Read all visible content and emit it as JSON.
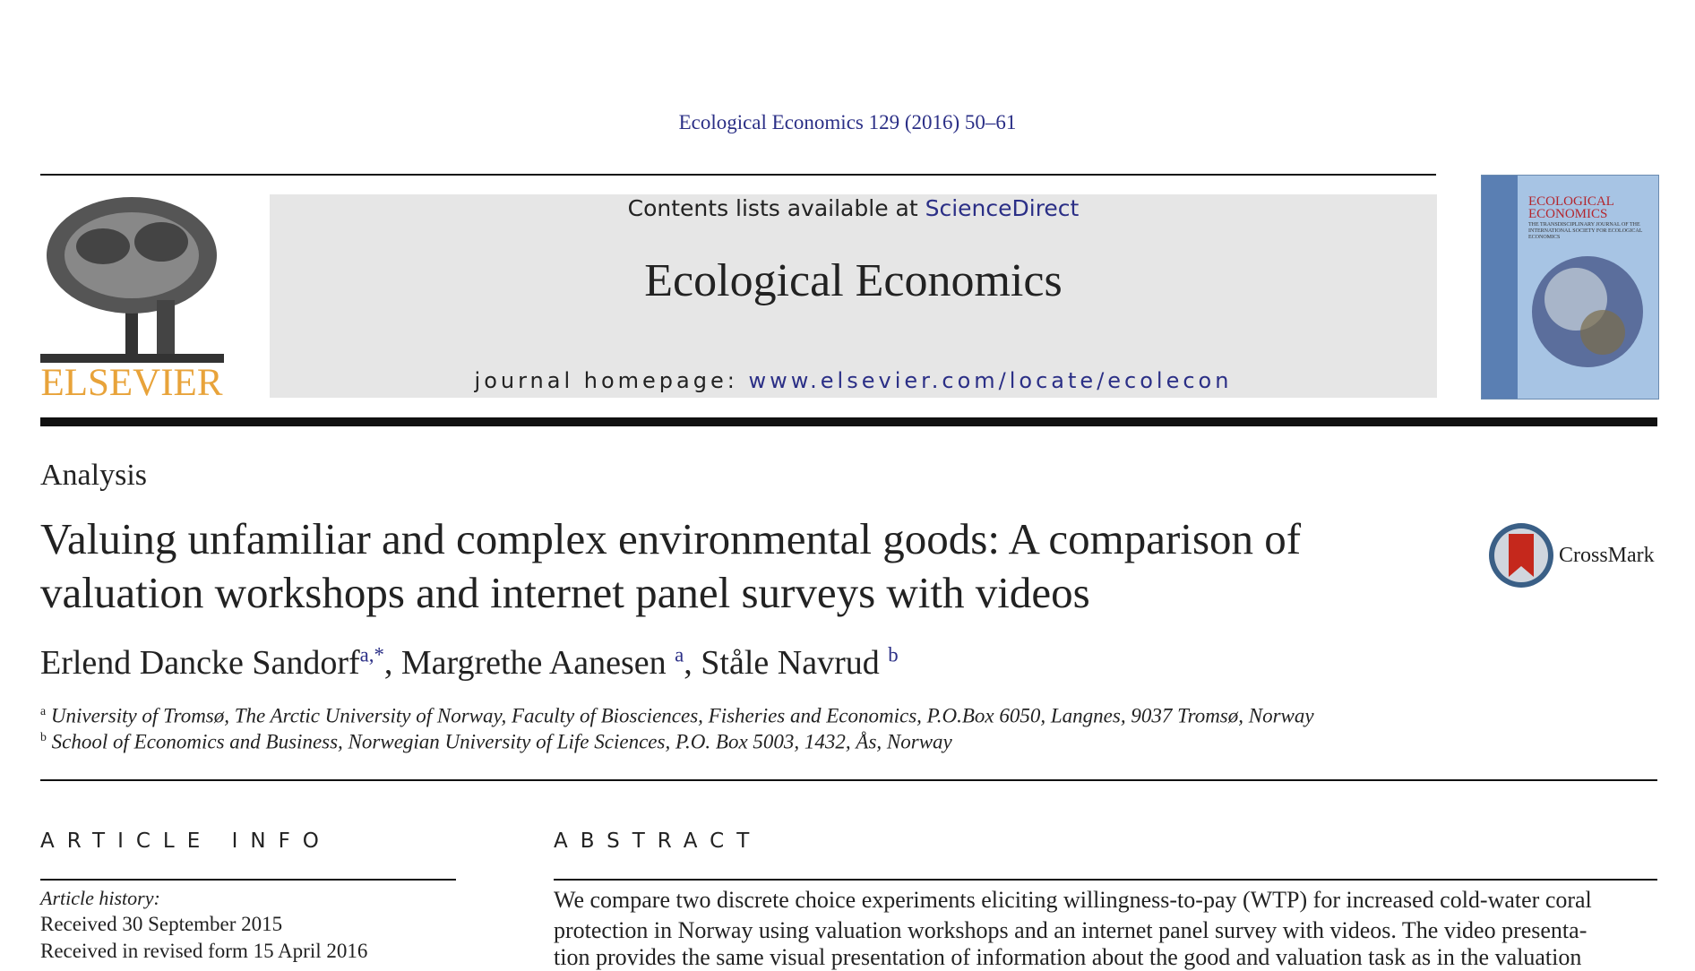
{
  "header": {
    "citation": "Ecological Economics 129 (2016) 50–61",
    "contents_prefix": "Contents lists available at",
    "contents_link": "ScienceDirect",
    "journal": "Ecological Economics",
    "homepage_label": "journal homepage:",
    "homepage_url": "www.elsevier.com/locate/ecolecon",
    "publisher": "ELSEVIER",
    "cover_title": "ECOLOGICAL ECONOMICS",
    "cover_subtitle": "THE TRANSDISCIPLINARY JOURNAL OF THE INTERNATIONAL SOCIETY FOR ECOLOGICAL ECONOMICS"
  },
  "article": {
    "section": "Analysis",
    "title": "Valuing unfamiliar and complex environmental goods: A comparison of valuation workshops and internet panel surveys with videos",
    "crossmark": "CrossMark",
    "authors": [
      {
        "name": "Erlend Dancke Sandorf",
        "affil": "a,*"
      },
      {
        "name": "Margrethe Aanesen",
        "affil": "a"
      },
      {
        "name": "Ståle Navrud",
        "affil": "b"
      }
    ],
    "affiliations": [
      {
        "mark": "a",
        "text": "University of Tromsø, The Arctic University of Norway, Faculty of Biosciences, Fisheries and Economics, P.O.Box 6050, Langnes, 9037 Tromsø, Norway"
      },
      {
        "mark": "b",
        "text": "School of Economics and Business, Norwegian University of Life Sciences, P.O. Box 5003, 1432, Ås, Norway"
      }
    ]
  },
  "article_info": {
    "heading": "ARTICLE INFO",
    "history_label": "Article history:",
    "history": [
      "Received 30 September 2015",
      "Received in revised form 15 April 2016"
    ]
  },
  "abstract": {
    "heading": "ABSTRACT",
    "lines": [
      "We compare two discrete choice experiments eliciting willingness-to-pay (WTP) for increased cold-water coral",
      "protection in Norway using valuation workshops and an internet panel survey with videos. The video presenta-",
      "tion provides the same visual presentation of information about the good and valuation task as in the valuation"
    ]
  }
}
